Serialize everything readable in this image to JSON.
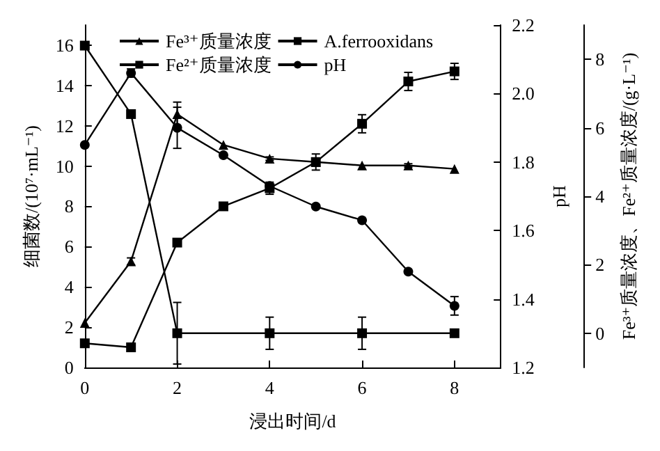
{
  "chart_data": {
    "type": "line",
    "xlabel": "浸出时间/d",
    "ylabel": "细菌数/(10⁷·mL⁻¹)",
    "y2label": "pH",
    "y3label": "Fe³⁺质量浓度、Fe²⁺质量浓度/(g·L⁻¹)",
    "x": [
      0,
      1,
      2,
      3,
      4,
      5,
      6,
      7,
      8
    ],
    "xlim": [
      0,
      9
    ],
    "xticks": [
      0,
      2,
      4,
      6,
      8
    ],
    "ylim": [
      0,
      17
    ],
    "yticks": [
      0,
      2,
      4,
      6,
      8,
      10,
      12,
      14,
      16
    ],
    "y2lim": [
      1.2,
      2.2
    ],
    "y2ticks": [
      1.2,
      1.4,
      1.6,
      1.8,
      {
        "value": 2,
        "label": "2.0"
      },
      2.2
    ],
    "y3lim": [
      -1,
      9
    ],
    "y3ticks": [
      0,
      2,
      4,
      6,
      8
    ],
    "legend": "top left",
    "grid": false,
    "line_style": "solid",
    "series": [
      {
        "name": "Fe³⁺质量浓度",
        "color": "#000000",
        "marker": "triangle",
        "axis": "y3",
        "values": [
          0.3,
          2.1,
          6.4,
          5.5,
          5.1,
          5.0,
          4.9,
          4.9,
          4.8
        ],
        "errors": [
          null,
          0.1,
          0.35,
          null,
          0.05,
          null,
          null,
          0.05,
          null
        ]
      },
      {
        "name": "A.ferrooxidans",
        "color": "#000000",
        "marker": "square",
        "values": [
          1.2,
          1.0,
          6.2,
          8.0,
          8.9,
          10.2,
          12.1,
          14.2,
          14.7
        ],
        "errors": [
          null,
          null,
          null,
          null,
          0.3,
          0.4,
          0.45,
          0.45,
          0.4
        ]
      },
      {
        "name": "Fe²⁺质量浓度",
        "color": "#000000",
        "marker": "square",
        "axis": "y3",
        "x": [
          0,
          1,
          2,
          4,
          6,
          8
        ],
        "values": [
          8.4,
          6.4,
          0.0,
          0.0,
          0.0,
          0.0
        ],
        "errors": [
          null,
          null,
          0.9,
          0.47,
          0.47,
          null
        ]
      },
      {
        "name": "pH",
        "color": "#000000",
        "marker": "circle",
        "axis": "y2",
        "values": [
          1.85,
          2.06,
          1.9,
          1.82,
          1.73,
          1.67,
          1.63,
          1.48,
          1.38
        ],
        "errors": [
          null,
          0.012,
          0.06,
          null,
          null,
          null,
          null,
          null,
          0.027
        ]
      }
    ]
  }
}
